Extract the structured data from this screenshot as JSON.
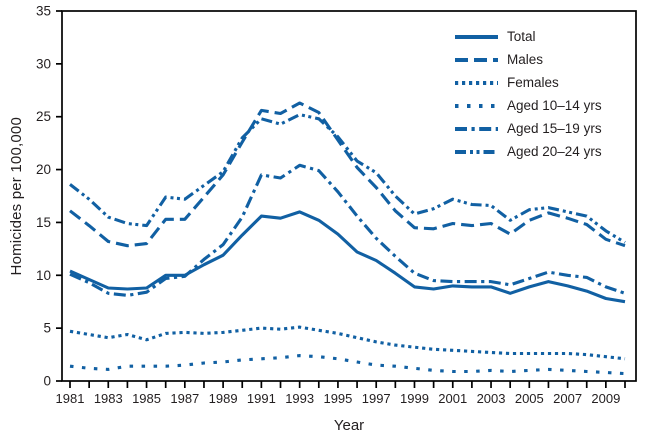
{
  "figure_title": "Homicide rates line chart",
  "chart_data": {
    "type": "line",
    "title": "",
    "xlabel": "Year",
    "ylabel": "Homicides per 100,000",
    "x": [
      1981,
      1982,
      1983,
      1984,
      1985,
      1986,
      1987,
      1988,
      1989,
      1990,
      1991,
      1992,
      1993,
      1994,
      1995,
      1996,
      1997,
      1998,
      1999,
      2000,
      2001,
      2002,
      2003,
      2004,
      2005,
      2006,
      2007,
      2008,
      2009,
      2010
    ],
    "x_tick_labels": [
      "1981",
      "1983",
      "1985",
      "1987",
      "1989",
      "1991",
      "1993",
      "1995",
      "1997",
      "1999",
      "2001",
      "2003",
      "2005",
      "2007",
      "2009"
    ],
    "y_ticks": [
      0,
      5,
      10,
      15,
      20,
      25,
      30,
      35
    ],
    "ylim": [
      0,
      35
    ],
    "grid": false,
    "legend_position": "top-right-inside",
    "line_color": "#1160a3",
    "axis_color": "#000000",
    "text_color": "#231f20",
    "series": [
      {
        "name": "Total",
        "dash": "solid",
        "values": [
          10.4,
          9.6,
          8.8,
          8.7,
          8.8,
          10.0,
          10.0,
          11.0,
          11.9,
          13.8,
          15.6,
          15.4,
          16.0,
          15.2,
          13.9,
          12.2,
          11.4,
          10.2,
          8.9,
          8.7,
          9.0,
          8.9,
          8.9,
          8.3,
          8.9,
          9.4,
          9.0,
          8.5,
          7.8,
          7.5
        ]
      },
      {
        "name": "Males",
        "dash": "dash",
        "values": [
          16.1,
          14.7,
          13.2,
          12.8,
          13.0,
          15.3,
          15.3,
          17.4,
          19.5,
          22.6,
          25.6,
          25.3,
          26.3,
          25.4,
          22.8,
          20.2,
          18.3,
          16.1,
          14.5,
          14.4,
          14.9,
          14.7,
          14.9,
          13.9,
          15.2,
          15.9,
          15.4,
          14.8,
          13.4,
          12.8
        ]
      },
      {
        "name": "Females",
        "dash": "dot",
        "values": [
          4.7,
          4.4,
          4.1,
          4.4,
          3.9,
          4.5,
          4.6,
          4.5,
          4.6,
          4.8,
          5.0,
          4.9,
          5.1,
          4.8,
          4.5,
          4.1,
          3.7,
          3.4,
          3.2,
          3.0,
          2.9,
          2.8,
          2.7,
          2.6,
          2.6,
          2.6,
          2.6,
          2.5,
          2.3,
          2.1
        ]
      },
      {
        "name": "Aged 10–14 yrs",
        "dash": "sparse-dot",
        "values": [
          1.4,
          1.2,
          1.1,
          1.4,
          1.4,
          1.4,
          1.5,
          1.7,
          1.8,
          2.0,
          2.1,
          2.2,
          2.4,
          2.3,
          2.1,
          1.8,
          1.5,
          1.4,
          1.2,
          1.0,
          0.9,
          0.9,
          1.0,
          0.9,
          1.0,
          1.1,
          1.0,
          0.9,
          0.8,
          0.7
        ]
      },
      {
        "name": "Aged 15–19 yrs",
        "dash": "dash-dot",
        "values": [
          10.1,
          9.3,
          8.3,
          8.1,
          8.4,
          9.7,
          9.9,
          11.5,
          12.9,
          15.5,
          19.5,
          19.2,
          20.4,
          19.9,
          17.9,
          15.6,
          13.5,
          11.8,
          10.2,
          9.5,
          9.4,
          9.4,
          9.4,
          9.1,
          9.7,
          10.3,
          10.0,
          9.8,
          8.9,
          8.3
        ]
      },
      {
        "name": "Aged 20–24 yrs",
        "dash": "dash-dot-dot",
        "values": [
          18.6,
          17.2,
          15.5,
          14.9,
          14.7,
          17.4,
          17.2,
          18.5,
          19.8,
          23.0,
          24.8,
          24.3,
          25.2,
          24.8,
          23.1,
          20.8,
          19.7,
          17.5,
          15.8,
          16.3,
          17.2,
          16.7,
          16.6,
          15.2,
          16.2,
          16.4,
          16.0,
          15.6,
          14.2,
          13.1
        ]
      }
    ]
  }
}
